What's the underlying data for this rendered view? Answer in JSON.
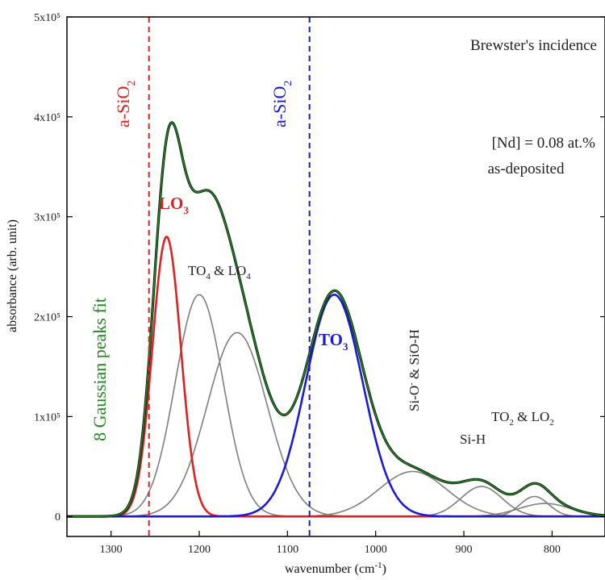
{
  "chart_data": {
    "type": "line",
    "xlabel": "wavenumber (cm⁻¹)",
    "ylabel": "absorbance (arb. unit)",
    "xlim": [
      1350,
      740
    ],
    "x_reversed": true,
    "ylim": [
      -20000,
      500000
    ],
    "x_ticks": [
      1300,
      1200,
      1100,
      1000,
      900,
      800
    ],
    "y_ticks": [
      {
        "value": 0,
        "label": "0"
      },
      {
        "value": 100000,
        "label": "1x10⁵"
      },
      {
        "value": 200000,
        "label": "2x10⁵"
      },
      {
        "value": 300000,
        "label": "3x10⁵"
      },
      {
        "value": 400000,
        "label": "4x10⁵"
      },
      {
        "value": 500000,
        "label": "5x10⁵"
      }
    ],
    "grid": false,
    "colors": {
      "measured": "#111111",
      "fit": "#1f8a1f",
      "LO3": "#e02020",
      "TO3": "#1a1ad8",
      "other": "#7f7f7f",
      "baseline": "#2a8a9a"
    },
    "peaks": [
      {
        "name": "LO₃",
        "center": 1237,
        "amplitude": 280000,
        "fwhm": 38,
        "color": "LO3"
      },
      {
        "name": "TO₄",
        "center": 1200,
        "amplitude": 222000,
        "fwhm": 64,
        "color": "other"
      },
      {
        "name": "LO₄",
        "center": 1157,
        "amplitude": 184000,
        "fwhm": 80,
        "color": "other"
      },
      {
        "name": "TO₃",
        "center": 1047,
        "amplitude": 222000,
        "fwhm": 76,
        "color": "TO3"
      },
      {
        "name": "Si-O⁻ & SiO-H",
        "center": 958,
        "amplitude": 45000,
        "fwhm": 90,
        "color": "other"
      },
      {
        "name": "Si-H",
        "center": 880,
        "amplitude": 30000,
        "fwhm": 55,
        "color": "other"
      },
      {
        "name": "TO₂",
        "center": 820,
        "amplitude": 20000,
        "fwhm": 38,
        "color": "other"
      },
      {
        "name": "LO₂",
        "center": 808,
        "amplitude": 13000,
        "fwhm": 70,
        "color": "other"
      }
    ],
    "reference_lines": [
      {
        "x": 1257,
        "label": "a-SiO₂",
        "color": "#e02020"
      },
      {
        "x": 1075,
        "label": "a-SiO₂",
        "color": "#1a1ad8"
      }
    ],
    "annotations": {
      "incidence": "Brewster's incidence",
      "nd_line1": "[Nd] = 0.08 at.%",
      "nd_line2": "as-deposited",
      "fit_label": "8 Gaussian peaks fit",
      "lo3": "LO₃",
      "to3": "TO₃",
      "to4_lo4": "TO₄ & LO₄",
      "sio": "Si-O⁻ & SiO-H",
      "sih": "Si-H",
      "to2_lo2": "TO₂ & LO₂"
    }
  }
}
